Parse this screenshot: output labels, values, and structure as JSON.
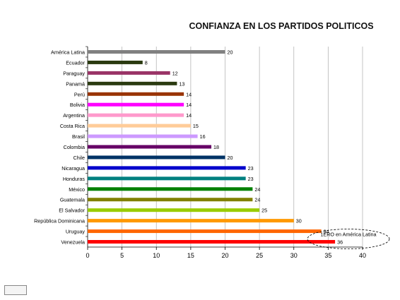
{
  "chart_data": {
    "type": "bar",
    "orientation": "horizontal",
    "title": "CONFIANZA EN LOS PARTIDOS POLITICOS",
    "xlabel": "",
    "ylabel": "",
    "xlim": [
      0,
      40
    ],
    "xticks": [
      0,
      5,
      10,
      15,
      20,
      25,
      30,
      35,
      40
    ],
    "grid": true,
    "categories": [
      "América Latina",
      "Ecuador",
      "Paraguay",
      "Panamá",
      "Perú",
      "Bolivia",
      "Argentina",
      "Costa Rica",
      "Brasil",
      "Colombia",
      "Chile",
      "Nicaragua",
      "Honduras",
      "México",
      "Guatemala",
      "El Salvador",
      "República Dominicana",
      "Uruguay",
      "Venezuela"
    ],
    "values": [
      20,
      8,
      12,
      13,
      14,
      14,
      14,
      15,
      16,
      18,
      20,
      23,
      23,
      24,
      24,
      25,
      30,
      34,
      36
    ],
    "colors": [
      "#808080",
      "#2a3a10",
      "#993366",
      "#2a3a10",
      "#993300",
      "#ff00ff",
      "#ff99cc",
      "#ffcc99",
      "#cc99ff",
      "#660066",
      "#003366",
      "#0000cc",
      "#008080",
      "#008000",
      "#808000",
      "#99cc00",
      "#ff9900",
      "#ff6600",
      "#ff0000"
    ],
    "annotation": "1ERO en América Latina"
  },
  "icons": {
    "slide_icon": "presentation-slide-icon"
  }
}
